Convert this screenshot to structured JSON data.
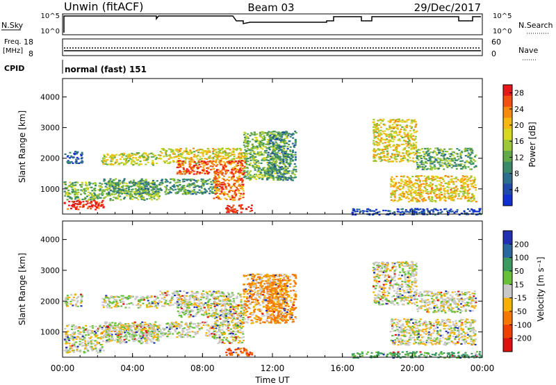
{
  "header": {
    "station": "Unwin (fitACF)",
    "beam": "Beam 03",
    "date": "29/Dec/2017"
  },
  "top_panels": {
    "nsky_label": "N.Sky",
    "nsky_ticks": [
      "10^5",
      "10^0"
    ],
    "nsearch_label": "N.Search",
    "nsearch_ticks": [
      "10^5",
      "10^0"
    ],
    "freq_label": "Freq.",
    "freq_unit": "[MHz]",
    "freq_ticks": [
      "18",
      "8"
    ],
    "nave_label": "Nave",
    "nave_ticks": [
      "60",
      "0"
    ],
    "cpid_label": "CPID",
    "cpid_value": "normal (fast) 151"
  },
  "chart_data": [
    {
      "type": "heatmap",
      "name": "power",
      "xlabel": "",
      "ylabel": "Slant Range [km]",
      "x_ticks": [
        "00:00",
        "04:00",
        "08:00",
        "12:00",
        "16:00",
        "20:00",
        "00:00"
      ],
      "xlim_hours": [
        0,
        24
      ],
      "y_ticks": [
        1000,
        2000,
        3000,
        4000
      ],
      "ylim_km": [
        180,
        4600
      ],
      "colorbar": {
        "label": "Power [dB]",
        "ticks": [
          4,
          8,
          12,
          16,
          20,
          24,
          28
        ],
        "colors": [
          "#1030d0",
          "#204aa8",
          "#2d6e8e",
          "#3a8a6a",
          "#60a848",
          "#9cc838",
          "#d8d820",
          "#f5b810",
          "#f58a10",
          "#f05010",
          "#e81818"
        ],
        "range": [
          0,
          30
        ]
      },
      "regions": [
        {
          "t": [
            0.05,
            2.3
          ],
          "r": [
            350,
            650
          ],
          "level": 0.95
        },
        {
          "t": [
            0.05,
            5.5
          ],
          "r": [
            650,
            1250
          ],
          "level": 0.45
        },
        {
          "t": [
            2.3,
            8.8
          ],
          "r": [
            850,
            1350
          ],
          "level": 0.35
        },
        {
          "t": [
            0.1,
            1.1
          ],
          "r": [
            1850,
            2250
          ],
          "level": 0.18
        },
        {
          "t": [
            2.2,
            5.5
          ],
          "r": [
            1800,
            2200
          ],
          "level": 0.55
        },
        {
          "t": [
            5.5,
            10.4
          ],
          "r": [
            1850,
            2350
          ],
          "level": 0.6
        },
        {
          "t": [
            6.5,
            10.4
          ],
          "r": [
            1500,
            1950
          ],
          "level": 0.85
        },
        {
          "t": [
            8.6,
            10.3
          ],
          "r": [
            650,
            1600
          ],
          "level": 0.8
        },
        {
          "t": [
            9.3,
            10.8
          ],
          "r": [
            250,
            500
          ],
          "level": 1.0
        },
        {
          "t": [
            10.3,
            12.8
          ],
          "r": [
            1300,
            2900
          ],
          "level": 0.45
        },
        {
          "t": [
            11.6,
            13.3
          ],
          "r": [
            1300,
            2900
          ],
          "level": 0.3
        },
        {
          "t": [
            17.7,
            20.2
          ],
          "r": [
            1900,
            3300
          ],
          "level": 0.6
        },
        {
          "t": [
            20.2,
            23.6
          ],
          "r": [
            1650,
            2350
          ],
          "level": 0.4
        },
        {
          "t": [
            18.7,
            23.6
          ],
          "r": [
            600,
            1450
          ],
          "level": 0.65
        },
        {
          "t": [
            16.5,
            23.9
          ],
          "r": [
            180,
            380
          ],
          "level": 0.12
        }
      ]
    },
    {
      "type": "heatmap",
      "name": "velocity",
      "xlabel": "Time UT",
      "ylabel": "Slant Range [km]",
      "x_ticks": [
        "00:00",
        "04:00",
        "08:00",
        "12:00",
        "16:00",
        "20:00",
        "00:00"
      ],
      "xlim_hours": [
        0,
        24
      ],
      "y_ticks": [
        1000,
        2000,
        3000,
        4000
      ],
      "ylim_km": [
        180,
        4600
      ],
      "colorbar": {
        "label": "Velocity [m s⁻¹]",
        "ticks": [
          "200",
          "100",
          "50",
          "15",
          "-15",
          "-50",
          "-100",
          "-200"
        ],
        "colors": [
          "#2030b0",
          "#2a66a0",
          "#3a9a60",
          "#66c03a",
          "#c8c8c8",
          "#f5b000",
          "#f57800",
          "#f04000",
          "#e01010"
        ],
        "range": [
          -250,
          250
        ]
      },
      "regions": [
        {
          "t": [
            0.05,
            2.3
          ],
          "r": [
            350,
            650
          ],
          "v": 0
        },
        {
          "t": [
            0.05,
            5.5
          ],
          "r": [
            650,
            1250
          ],
          "v": 0
        },
        {
          "t": [
            2.3,
            8.8
          ],
          "r": [
            850,
            1350
          ],
          "v": 0
        },
        {
          "t": [
            0.1,
            1.1
          ],
          "r": [
            1850,
            2250
          ],
          "v": 0
        },
        {
          "t": [
            2.2,
            5.5
          ],
          "r": [
            1800,
            2200
          ],
          "v": 0
        },
        {
          "t": [
            5.5,
            10.4
          ],
          "r": [
            1850,
            2350
          ],
          "v": 0
        },
        {
          "t": [
            6.5,
            10.4
          ],
          "r": [
            1500,
            1950
          ],
          "v": 0
        },
        {
          "t": [
            8.6,
            10.3
          ],
          "r": [
            650,
            1600
          ],
          "v": 0
        },
        {
          "t": [
            9.3,
            10.8
          ],
          "r": [
            250,
            500
          ],
          "v": -80
        },
        {
          "t": [
            10.3,
            12.8
          ],
          "r": [
            1300,
            2900
          ],
          "v": -30
        },
        {
          "t": [
            11.6,
            13.3
          ],
          "r": [
            1300,
            2900
          ],
          "v": -40
        },
        {
          "t": [
            17.7,
            20.2
          ],
          "r": [
            1900,
            3300
          ],
          "v": 0
        },
        {
          "t": [
            20.2,
            23.6
          ],
          "r": [
            1650,
            2350
          ],
          "v": 0
        },
        {
          "t": [
            18.7,
            23.6
          ],
          "r": [
            600,
            1450
          ],
          "v": 0
        },
        {
          "t": [
            16.5,
            23.9
          ],
          "r": [
            180,
            380
          ],
          "v": 40
        }
      ]
    }
  ]
}
